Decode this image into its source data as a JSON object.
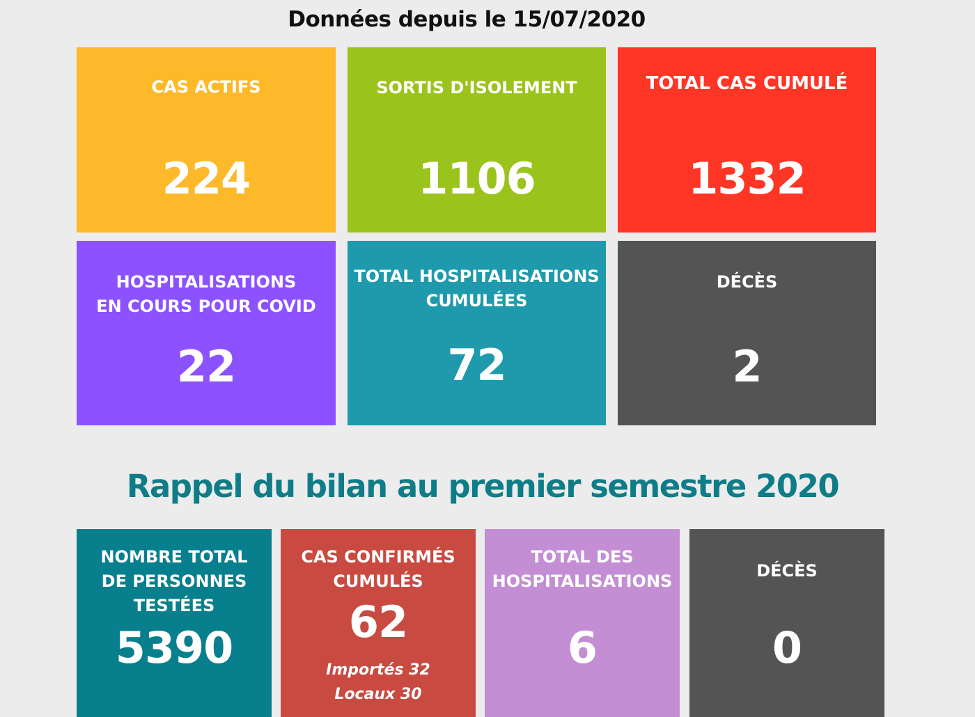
{
  "header": {
    "title": "Données depuis le 15/07/2020"
  },
  "current_stats": [
    {
      "id": "cas_actifs",
      "label": "CAS ACTIFS",
      "value": "224",
      "color": "#fdb92a"
    },
    {
      "id": "sortis_isolement",
      "label": "SORTIS D'ISOLEMENT",
      "value": "1106",
      "color": "#9ac31c"
    },
    {
      "id": "total_cas_cumule",
      "label": "TOTAL CAS CUMULÉ",
      "value": "1332",
      "color": "#ff3526"
    },
    {
      "id": "hospitalisations_en_cours",
      "label_line1": "HOSPITALISATIONS",
      "label_line2": "EN COURS POUR COVID",
      "value": "22",
      "color": "#8c52ff"
    },
    {
      "id": "total_hospitalisations_cumulees",
      "label_line1": "TOTAL HOSPITALISATIONS",
      "label_line2": "CUMULÉES",
      "value": "72",
      "color": "#1f9aad"
    },
    {
      "id": "deces",
      "label": "DÉCÈS",
      "value": "2",
      "color": "#545454"
    }
  ],
  "section": {
    "title": "Rappel du bilan au premier semestre 2020"
  },
  "semester_stats": [
    {
      "id": "personnes_testees",
      "label_line1": "NOMBRE TOTAL",
      "label_line2": "DE PERSONNES",
      "label_line3": "TESTÉES",
      "value": "5390",
      "color": "#077f8d"
    },
    {
      "id": "cas_confirmes",
      "label_line1": "CAS CONFIRMÉS",
      "label_line2": "CUMULÉS",
      "value": "62",
      "detail_line1": "Importés 32",
      "detail_line2": "Locaux 30",
      "color": "#c84a40"
    },
    {
      "id": "total_hospitalisations",
      "label_line1": "TOTAL DES",
      "label_line2": "HOSPITALISATIONS",
      "value": "6",
      "color": "#c38ed4"
    },
    {
      "id": "deces_semestre",
      "label": "DÉCÈS",
      "value": "0",
      "color": "#545454"
    }
  ]
}
